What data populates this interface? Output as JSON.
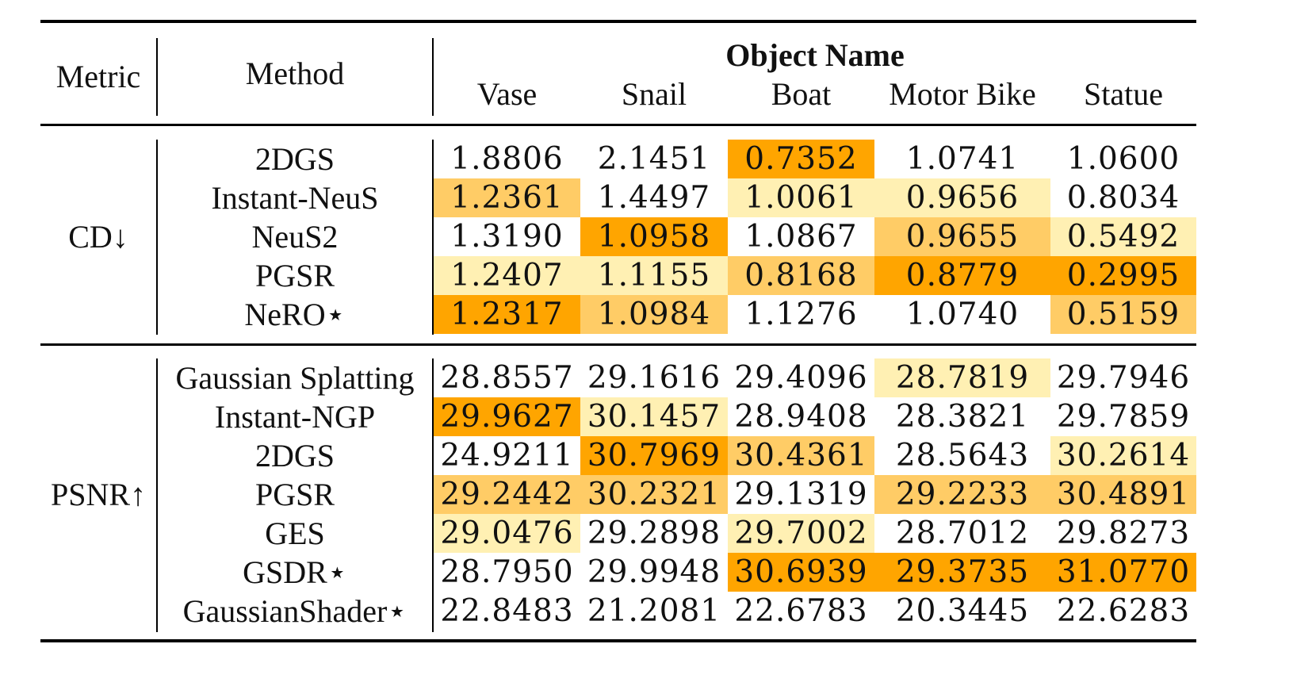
{
  "header": {
    "metric": "Metric",
    "method": "Method",
    "object_name": "Object Name",
    "objects": [
      "Vase",
      "Snail",
      "Boat",
      "Motor Bike",
      "Statue"
    ]
  },
  "colors": {
    "first": "#ffa500",
    "second": "#ffcc66",
    "third": "#fff0b3"
  },
  "sections": [
    {
      "metric": "CD↓",
      "rows": [
        {
          "method": "2DGS",
          "values": [
            "1.8806",
            "2.1451",
            "0.7352",
            "1.0741",
            "1.0600"
          ],
          "ranks": [
            0,
            0,
            1,
            0,
            0
          ]
        },
        {
          "method": "Instant-NeuS",
          "values": [
            "1.2361",
            "1.4497",
            "1.0061",
            "0.9656",
            "0.8034"
          ],
          "ranks": [
            2,
            0,
            3,
            3,
            0
          ]
        },
        {
          "method": "NeuS2",
          "values": [
            "1.3190",
            "1.0958",
            "1.0867",
            "0.9655",
            "0.5492"
          ],
          "ranks": [
            0,
            1,
            0,
            2,
            3
          ]
        },
        {
          "method": "PGSR",
          "values": [
            "1.2407",
            "1.1155",
            "0.8168",
            "0.8779",
            "0.2995"
          ],
          "ranks": [
            3,
            3,
            2,
            1,
            1
          ]
        },
        {
          "method": "NeRO⋆",
          "values": [
            "1.2317",
            "1.0984",
            "1.1276",
            "1.0740",
            "0.5159"
          ],
          "ranks": [
            1,
            2,
            0,
            0,
            2
          ]
        }
      ]
    },
    {
      "metric": "PSNR↑",
      "rows": [
        {
          "method": "Gaussian Splatting",
          "values": [
            "28.8557",
            "29.1616",
            "29.4096",
            "28.7819",
            "29.7946"
          ],
          "ranks": [
            0,
            0,
            0,
            3,
            0
          ]
        },
        {
          "method": "Instant-NGP",
          "values": [
            "29.9627",
            "30.1457",
            "28.9408",
            "28.3821",
            "29.7859"
          ],
          "ranks": [
            1,
            3,
            0,
            0,
            0
          ]
        },
        {
          "method": "2DGS",
          "values": [
            "24.9211",
            "30.7969",
            "30.4361",
            "28.5643",
            "30.2614"
          ],
          "ranks": [
            0,
            1,
            2,
            0,
            3
          ]
        },
        {
          "method": "PGSR",
          "values": [
            "29.2442",
            "30.2321",
            "29.1319",
            "29.2233",
            "30.4891"
          ],
          "ranks": [
            2,
            2,
            0,
            2,
            2
          ]
        },
        {
          "method": "GES",
          "values": [
            "29.0476",
            "29.2898",
            "29.7002",
            "28.7012",
            "29.8273"
          ],
          "ranks": [
            3,
            0,
            3,
            0,
            0
          ]
        },
        {
          "method": "GSDR⋆",
          "values": [
            "28.7950",
            "29.9948",
            "30.6939",
            "29.3735",
            "31.0770"
          ],
          "ranks": [
            0,
            0,
            1,
            1,
            1
          ]
        },
        {
          "method": "GaussianShader⋆",
          "values": [
            "22.8483",
            "21.2081",
            "22.6783",
            "20.3445",
            "22.6283"
          ],
          "ranks": [
            0,
            0,
            0,
            0,
            0
          ]
        }
      ]
    }
  ]
}
